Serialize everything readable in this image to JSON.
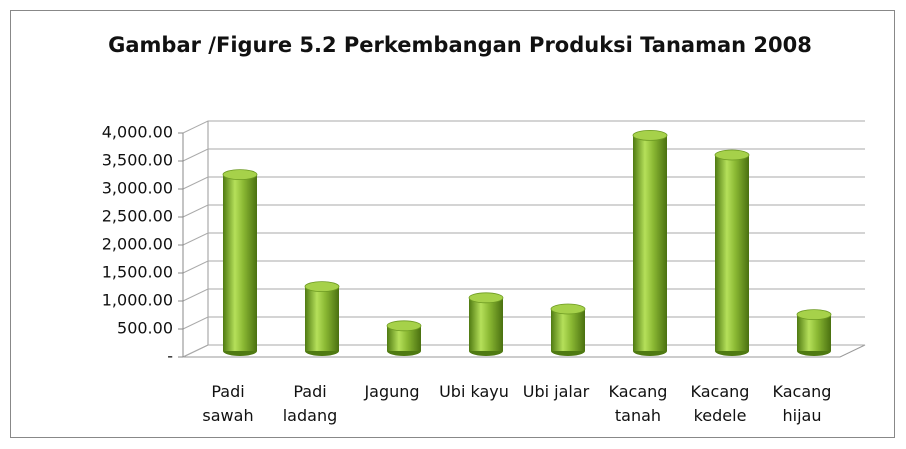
{
  "chart_data": {
    "type": "bar",
    "title": "Gambar /Figure 5.2 Perkembangan Produksi  Tanaman 2008",
    "categories": [
      "Padi sawah",
      "Padi ladang",
      "Jagung",
      "Ubi kayu",
      "Ubi jalar",
      "Kacang tanah",
      "Kacang kedele",
      "Kacang hijau"
    ],
    "values": [
      3150,
      1150,
      450,
      950,
      750,
      3850,
      3500,
      650
    ],
    "color": "#8ab833",
    "ylim": [
      0,
      4000
    ],
    "yticks": [
      {
        "value": 0,
        "label": "-"
      },
      {
        "value": 500,
        "label": "500.00"
      },
      {
        "value": 1000,
        "label": "1,000.00"
      },
      {
        "value": 1500,
        "label": "1,500.00"
      },
      {
        "value": 2000,
        "label": "2,000.00"
      },
      {
        "value": 2500,
        "label": "2,500.00"
      },
      {
        "value": 3000,
        "label": "3,000.00"
      },
      {
        "value": 3500,
        "label": "3,500.00"
      },
      {
        "value": 4000,
        "label": "4,000.00"
      }
    ],
    "grid": true
  }
}
